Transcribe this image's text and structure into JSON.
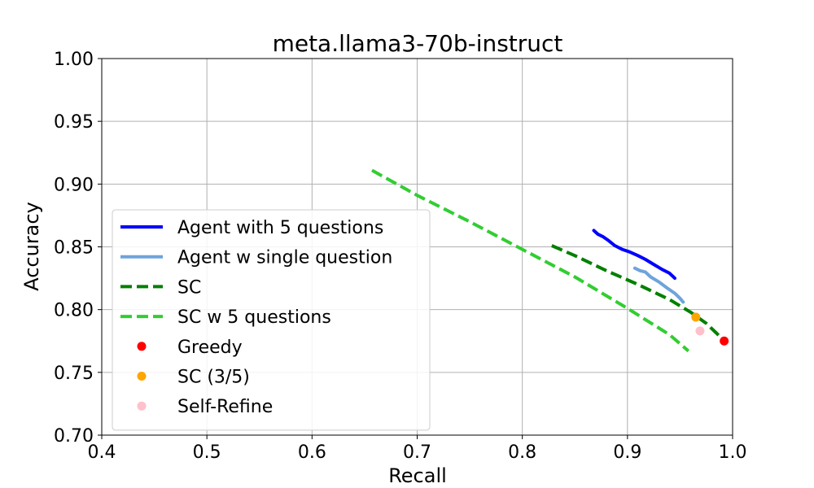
{
  "chart_data": {
    "title": "meta.llama3-70b-instruct",
    "xlabel": "Recall",
    "ylabel": "Accuracy",
    "xlim": [
      0.4,
      1.0
    ],
    "ylim": [
      0.7,
      1.0
    ],
    "xticks": [
      "0.4",
      "0.5",
      "0.6",
      "0.7",
      "0.8",
      "0.9",
      "1.0"
    ],
    "yticks": [
      "0.70",
      "0.75",
      "0.80",
      "0.85",
      "0.90",
      "0.95",
      "1.00"
    ],
    "grid": true,
    "legend_position": "lower-left",
    "type": "line",
    "series": [
      {
        "name": "Agent with 5 questions",
        "kind": "line",
        "style": "solid",
        "color": "#0000ff",
        "points": [
          [
            0.868,
            0.863
          ],
          [
            0.872,
            0.86
          ],
          [
            0.877,
            0.858
          ],
          [
            0.882,
            0.855
          ],
          [
            0.888,
            0.851
          ],
          [
            0.895,
            0.848
          ],
          [
            0.902,
            0.846
          ],
          [
            0.91,
            0.843
          ],
          [
            0.917,
            0.84
          ],
          [
            0.925,
            0.836
          ],
          [
            0.933,
            0.832
          ],
          [
            0.94,
            0.829
          ],
          [
            0.945,
            0.825
          ]
        ]
      },
      {
        "name": "Agent w single question",
        "kind": "line",
        "style": "solid",
        "color": "#6fa3dc",
        "points": [
          [
            0.907,
            0.833
          ],
          [
            0.912,
            0.831
          ],
          [
            0.917,
            0.83
          ],
          [
            0.922,
            0.826
          ],
          [
            0.93,
            0.822
          ],
          [
            0.938,
            0.817
          ],
          [
            0.945,
            0.813
          ],
          [
            0.95,
            0.809
          ],
          [
            0.953,
            0.806
          ]
        ]
      },
      {
        "name": "SC",
        "kind": "line",
        "style": "dashed",
        "color": "#008000",
        "points": [
          [
            0.828,
            0.851
          ],
          [
            0.85,
            0.843
          ],
          [
            0.88,
            0.831
          ],
          [
            0.91,
            0.82
          ],
          [
            0.94,
            0.808
          ],
          [
            0.96,
            0.798
          ],
          [
            0.975,
            0.789
          ],
          [
            0.985,
            0.781
          ],
          [
            0.992,
            0.775
          ]
        ]
      },
      {
        "name": "SC w 5 questions",
        "kind": "line",
        "style": "dashed",
        "color": "#32cd32",
        "points": [
          [
            0.657,
            0.911
          ],
          [
            0.7,
            0.891
          ],
          [
            0.75,
            0.87
          ],
          [
            0.8,
            0.848
          ],
          [
            0.85,
            0.826
          ],
          [
            0.9,
            0.801
          ],
          [
            0.94,
            0.78
          ],
          [
            0.958,
            0.767
          ]
        ]
      },
      {
        "name": "Greedy",
        "kind": "scatter",
        "color": "#ff0000",
        "points": [
          [
            0.992,
            0.775
          ]
        ]
      },
      {
        "name": "SC (3/5)",
        "kind": "scatter",
        "color": "#ffa500",
        "points": [
          [
            0.965,
            0.794
          ]
        ]
      },
      {
        "name": "Self-Refine",
        "kind": "scatter",
        "color": "#ffc0cb",
        "points": [
          [
            0.969,
            0.783
          ]
        ]
      }
    ]
  }
}
